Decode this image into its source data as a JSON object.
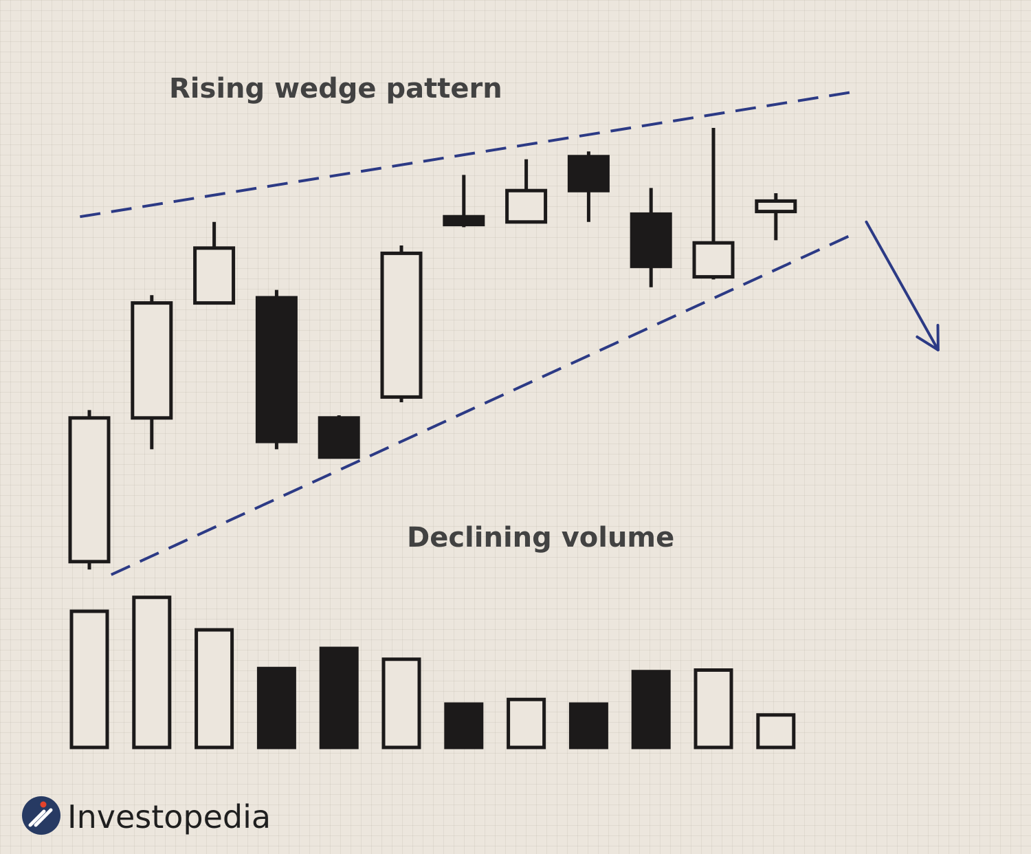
{
  "chart_data": {
    "type": "candlestick",
    "title": "Rising wedge pattern",
    "volume_label": "Declining volume",
    "price_range": [
      0,
      100
    ],
    "volume_range": [
      0,
      100
    ],
    "candles": [
      {
        "open": 4,
        "close": 59,
        "high": 62,
        "low": 1,
        "filled": false
      },
      {
        "open": 59,
        "close": 103,
        "high": 106,
        "low": 47,
        "filled": false
      },
      {
        "open": 103,
        "close": 124,
        "high": 134,
        "low": 103,
        "filled": false
      },
      {
        "open": 105,
        "close": 50,
        "high": 108,
        "low": 47,
        "filled": true
      },
      {
        "open": 59,
        "close": 44,
        "high": 60,
        "low": 44,
        "filled": true
      },
      {
        "open": 67,
        "close": 122,
        "high": 125,
        "low": 65,
        "filled": false
      },
      {
        "open": 136,
        "close": 133,
        "high": 152,
        "low": 132,
        "filled": true
      },
      {
        "open": 134,
        "close": 146,
        "high": 158,
        "low": 134,
        "filled": false
      },
      {
        "open": 159,
        "close": 146,
        "high": 161,
        "low": 134,
        "filled": true
      },
      {
        "open": 137,
        "close": 117,
        "high": 147,
        "low": 109,
        "filled": true
      },
      {
        "open": 113,
        "close": 126,
        "high": 170,
        "low": 112,
        "filled": false
      },
      {
        "open": 138,
        "close": 142,
        "high": 145,
        "low": 127,
        "filled": false
      }
    ],
    "volume": [
      {
        "value": 88,
        "filled": false
      },
      {
        "value": 97,
        "filled": false
      },
      {
        "value": 76,
        "filled": false
      },
      {
        "value": 51,
        "filled": true
      },
      {
        "value": 64,
        "filled": true
      },
      {
        "value": 57,
        "filled": false
      },
      {
        "value": 28,
        "filled": true
      },
      {
        "value": 31,
        "filled": false
      },
      {
        "value": 28,
        "filled": true
      },
      {
        "value": 49,
        "filled": true
      },
      {
        "value": 50,
        "filled": false
      },
      {
        "value": 21,
        "filled": false
      }
    ],
    "trendlines": [
      {
        "name": "upper",
        "from": [
          -0.15,
          136
        ],
        "to": [
          12.3,
          184
        ]
      },
      {
        "name": "lower",
        "from": [
          0.35,
          -1
        ],
        "to": [
          12.3,
          130
        ]
      }
    ],
    "breakout_arrow": {
      "from": [
        12.45,
        134
      ],
      "to": [
        13.6,
        85
      ]
    }
  },
  "colors": {
    "background": "#ece6dd",
    "candle": "#1c1a1a",
    "trendline": "#2c3a85",
    "text": "#424242",
    "logo_dot": "#e5432c"
  },
  "brand": {
    "name": "Investopedia",
    "icon": "investopedia-logo-icon"
  }
}
